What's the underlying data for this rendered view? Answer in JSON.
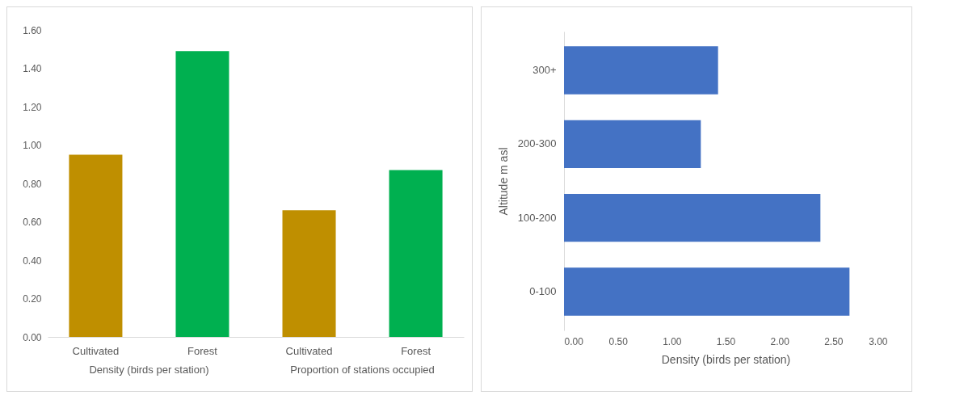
{
  "chart_data": [
    {
      "type": "bar",
      "categories": [
        "Density (birds per station)",
        "Proportion of stations occupied"
      ],
      "series": [
        {
          "name": "Cultivated",
          "color": "#bf8f00",
          "values": [
            0.95,
            0.66
          ]
        },
        {
          "name": "Forest",
          "color": "#00b050",
          "values": [
            1.49,
            0.87
          ]
        }
      ],
      "ylim": [
        0,
        1.6
      ],
      "yticks": [
        {
          "value": 0,
          "label": "0.00"
        },
        {
          "value": 0.2,
          "label": "0.20"
        },
        {
          "value": 0.4,
          "label": "0.40"
        },
        {
          "value": 0.6,
          "label": "0.60"
        },
        {
          "value": 0.8,
          "label": "0.80"
        },
        {
          "value": 1,
          "label": "1.00"
        },
        {
          "value": 1.2,
          "label": "1.20"
        },
        {
          "value": 1.4,
          "label": "1.40"
        },
        {
          "value": 1.6,
          "label": "1.60"
        }
      ],
      "grid": false,
      "legend": false
    },
    {
      "type": "bar",
      "orientation": "horizontal",
      "categories": [
        "300+",
        "200-300",
        "100-200",
        "0-100"
      ],
      "values": [
        1.43,
        1.27,
        2.38,
        2.65
      ],
      "color": "#4472c4",
      "xlabel": "Density (birds per station)",
      "ylabel": "Altitude m asl",
      "xlim": [
        0,
        3
      ],
      "xticks": [
        {
          "value": 0,
          "label": "0.00"
        },
        {
          "value": 0.5,
          "label": "0.50"
        },
        {
          "value": 1,
          "label": "1.00"
        },
        {
          "value": 1.5,
          "label": "1.50"
        },
        {
          "value": 2,
          "label": "2.00"
        },
        {
          "value": 2.5,
          "label": "2.50"
        },
        {
          "value": 3,
          "label": "3.00"
        }
      ],
      "grid": false
    }
  ]
}
